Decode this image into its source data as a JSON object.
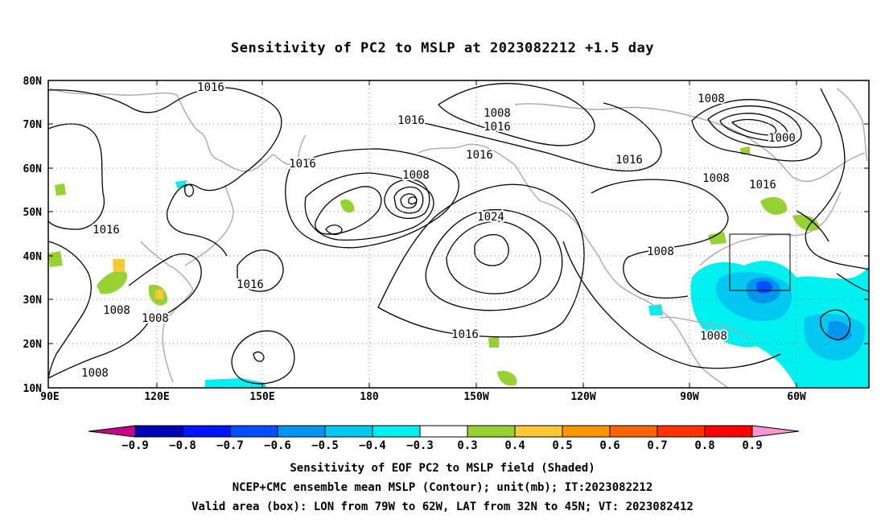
{
  "title": "Sensitivity of PC2 to MSLP at 2023082212 +1.5 day",
  "lat_labels": [
    "80N",
    "70N",
    "60N",
    "50N",
    "40N",
    "30N",
    "20N",
    "10N"
  ],
  "lon_labels": [
    "90E",
    "120E",
    "150E",
    "180",
    "150W",
    "120W",
    "90W",
    "60W"
  ],
  "colorbar": {
    "labels": [
      "-0.9",
      "-0.8",
      "-0.7",
      "-0.6",
      "-0.5",
      "-0.4",
      "-0.3",
      "0.3",
      "0.4",
      "0.5",
      "0.6",
      "0.7",
      "0.8",
      "0.9"
    ],
    "colors": [
      "#0000b4",
      "#0014ff",
      "#0050ff",
      "#0096f0",
      "#00c8f0",
      "#00f0f0",
      "#ffffff",
      "#96d232",
      "#fac832",
      "#ff9600",
      "#ff6400",
      "#ff3200",
      "#ff0000"
    ],
    "under_color": "#c8008c",
    "over_color": "#ff96d2"
  },
  "contour_labels": [
    {
      "text": "1016"
    },
    {
      "text": "1008"
    },
    {
      "text": "1016"
    },
    {
      "text": "1016"
    },
    {
      "text": "1008"
    },
    {
      "text": "1000"
    },
    {
      "text": "1016"
    },
    {
      "text": "1016"
    },
    {
      "text": "1008"
    },
    {
      "text": "1016"
    },
    {
      "text": "1016"
    },
    {
      "text": "1008"
    },
    {
      "text": "1024"
    },
    {
      "text": "1016"
    },
    {
      "text": "1008"
    },
    {
      "text": "1008"
    },
    {
      "text": "1008"
    },
    {
      "text": "1008"
    },
    {
      "text": "1016"
    },
    {
      "text": "1008"
    }
  ],
  "captions": [
    "Sensitivity of EOF PC2 to MSLP field (Shaded)",
    "NCEP+CMC ensemble mean MSLP (Contour); unit(mb); IT:2023082212",
    "Valid area (box): LON from 79W to 62W, LAT from 32N to 45N; VT: 2023082412"
  ]
}
